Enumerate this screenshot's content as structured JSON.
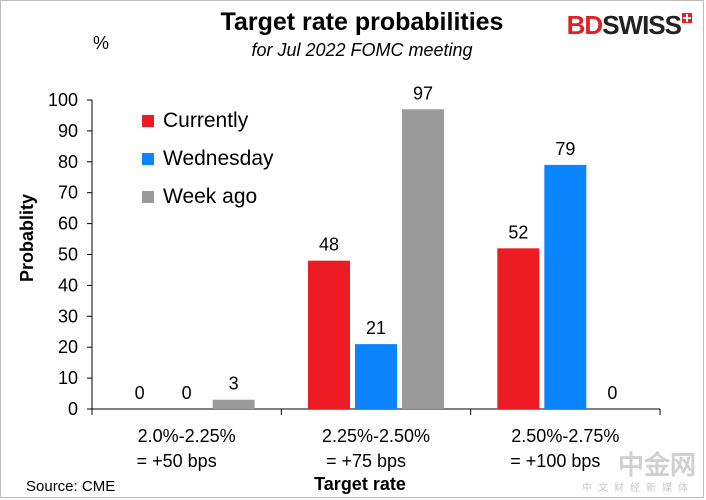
{
  "chart_data": {
    "type": "bar",
    "title": "Target rate probabilities",
    "subtitle": "for Jul 2022 FOMC meeting",
    "unit_label": "%",
    "ylabel": "Probablity",
    "xlabel": "Target rate",
    "ylim": [
      0,
      100
    ],
    "yticks": [
      0,
      10,
      20,
      30,
      40,
      50,
      60,
      70,
      80,
      90,
      100
    ],
    "categories": [
      [
        "2.0%-2.25%",
        "= +50 bps"
      ],
      [
        "2.25%-2.50%",
        "= +75 bps"
      ],
      [
        "2.50%-2.75%",
        "= +100 bps"
      ]
    ],
    "series": [
      {
        "name": "Currently",
        "color": "#ed1c24",
        "values": [
          0,
          48,
          52
        ]
      },
      {
        "name": "Wednesday",
        "color": "#0a84ff",
        "values": [
          0,
          21,
          79
        ]
      },
      {
        "name": "Week ago",
        "color": "#9a9a9a",
        "values": [
          3,
          97,
          0
        ]
      }
    ],
    "legend": "top-left",
    "source": "Source: CME"
  },
  "logo": {
    "part1": "BD",
    "part2": "SWISS"
  },
  "watermark": {
    "main": "中金网",
    "sub": "中文财经新媒体"
  }
}
